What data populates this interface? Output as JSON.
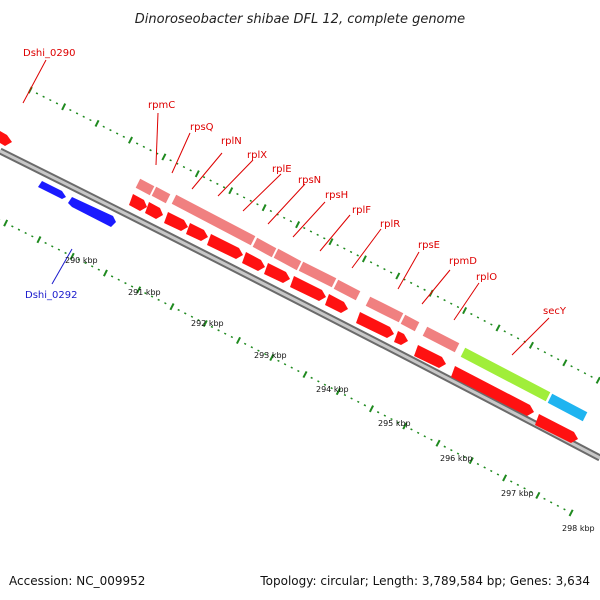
{
  "title": "Dinoroseobacter shibae DFL 12, complete genome",
  "footer": {
    "accession": "Accession: NC_009952",
    "summary": "Topology: circular; Length: 3,789,584 bp; Genes: 3,634"
  },
  "colors": {
    "backbone": "#8a8a8a",
    "ticks": "#1f8a1f",
    "forward_gene": "#f08080",
    "forward_cds": "#ff1111",
    "reverse_cds": "#1a1aff",
    "secY": "#a0ee3a",
    "cyan_gene": "#1fb4f0",
    "label_forward": "#dd0000",
    "label_reverse": "#1a1acc"
  },
  "ticks": [
    {
      "label": "290 kbp"
    },
    {
      "label": "291 kbp"
    },
    {
      "label": "292 kbp"
    },
    {
      "label": "293 kbp"
    },
    {
      "label": "294 kbp"
    },
    {
      "label": "295 kbp"
    },
    {
      "label": "296 kbp"
    },
    {
      "label": "297 kbp"
    },
    {
      "label": "298 kbp"
    }
  ],
  "gene_labels": [
    {
      "text": "Dshi_0290",
      "strand": "forward"
    },
    {
      "text": "rpmC",
      "strand": "forward"
    },
    {
      "text": "rpsQ",
      "strand": "forward"
    },
    {
      "text": "rplN",
      "strand": "forward"
    },
    {
      "text": "rplX",
      "strand": "forward"
    },
    {
      "text": "rplE",
      "strand": "forward"
    },
    {
      "text": "rpsN",
      "strand": "forward"
    },
    {
      "text": "rpsH",
      "strand": "forward"
    },
    {
      "text": "rplF",
      "strand": "forward"
    },
    {
      "text": "rplR",
      "strand": "forward"
    },
    {
      "text": "rpsE",
      "strand": "forward"
    },
    {
      "text": "rpmD",
      "strand": "forward"
    },
    {
      "text": "rplO",
      "strand": "forward"
    },
    {
      "text": "secY",
      "strand": "forward"
    },
    {
      "text": "Dshi_0292",
      "strand": "reverse"
    }
  ]
}
